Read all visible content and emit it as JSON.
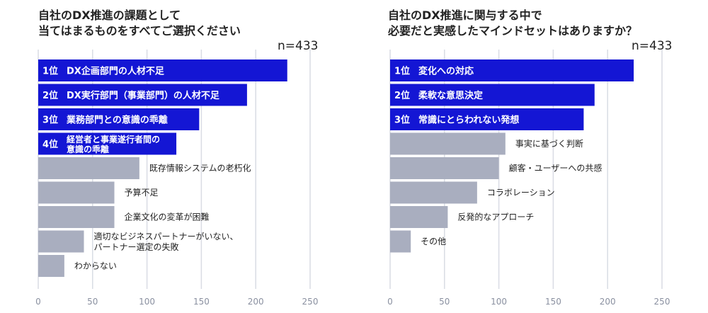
{
  "chart_data": [
    {
      "type": "bar",
      "orientation": "horizontal",
      "title": [
        "自社のDX推進の課題として",
        "当てはまるものをすべてご選択ください"
      ],
      "n_label": "n=433",
      "categories": [
        [
          "1位",
          "DX企画部門の人材不足"
        ],
        [
          "2位",
          "DX実行部門（事業部門）の人材不足"
        ],
        [
          "3位",
          "業務部門との意識の乖離"
        ],
        [
          "4位",
          "経営者と事業遂行者間の",
          "意識の乖離"
        ],
        [
          "",
          "既存情報システムの老朽化"
        ],
        [
          "",
          "予算不足"
        ],
        [
          "",
          "企業文化の変革が困難"
        ],
        [
          "",
          "適切なビジネスパートナーがいない、",
          "パートナー選定の失敗"
        ],
        [
          "",
          "わからない"
        ]
      ],
      "values": [
        229,
        192,
        148,
        127,
        93,
        70,
        70,
        42,
        24
      ],
      "xlim": [
        0,
        250
      ],
      "xticks": [
        "0",
        "50",
        "100",
        "150",
        "200",
        "250"
      ],
      "highlight_color": "#1416d4",
      "other_color": "#a9aebf",
      "highlight_count": 4,
      "grid": true
    },
    {
      "type": "bar",
      "orientation": "horizontal",
      "title": [
        "自社のDX推進に関与する中で",
        "必要だと実感したマインドセットはありますか？"
      ],
      "n_label": "n=433",
      "categories": [
        [
          "1位",
          "変化への対応"
        ],
        [
          "2位",
          "柔軟な意思決定"
        ],
        [
          "3位",
          "常識にとらわれない発想"
        ],
        [
          "",
          "事実に基づく判断"
        ],
        [
          "",
          "顧客・ユーザーへの共感"
        ],
        [
          "",
          "コラボレーション"
        ],
        [
          "",
          "反発的なアプローチ"
        ],
        [
          "",
          "その他"
        ]
      ],
      "values": [
        224,
        188,
        178,
        106,
        100,
        80,
        53,
        19
      ],
      "xlim": [
        0,
        250
      ],
      "xticks": [
        "0",
        "50",
        "100",
        "150",
        "200",
        "250"
      ],
      "highlight_color": "#1416d4",
      "other_color": "#a9aebf",
      "highlight_count": 3,
      "grid": true
    }
  ]
}
